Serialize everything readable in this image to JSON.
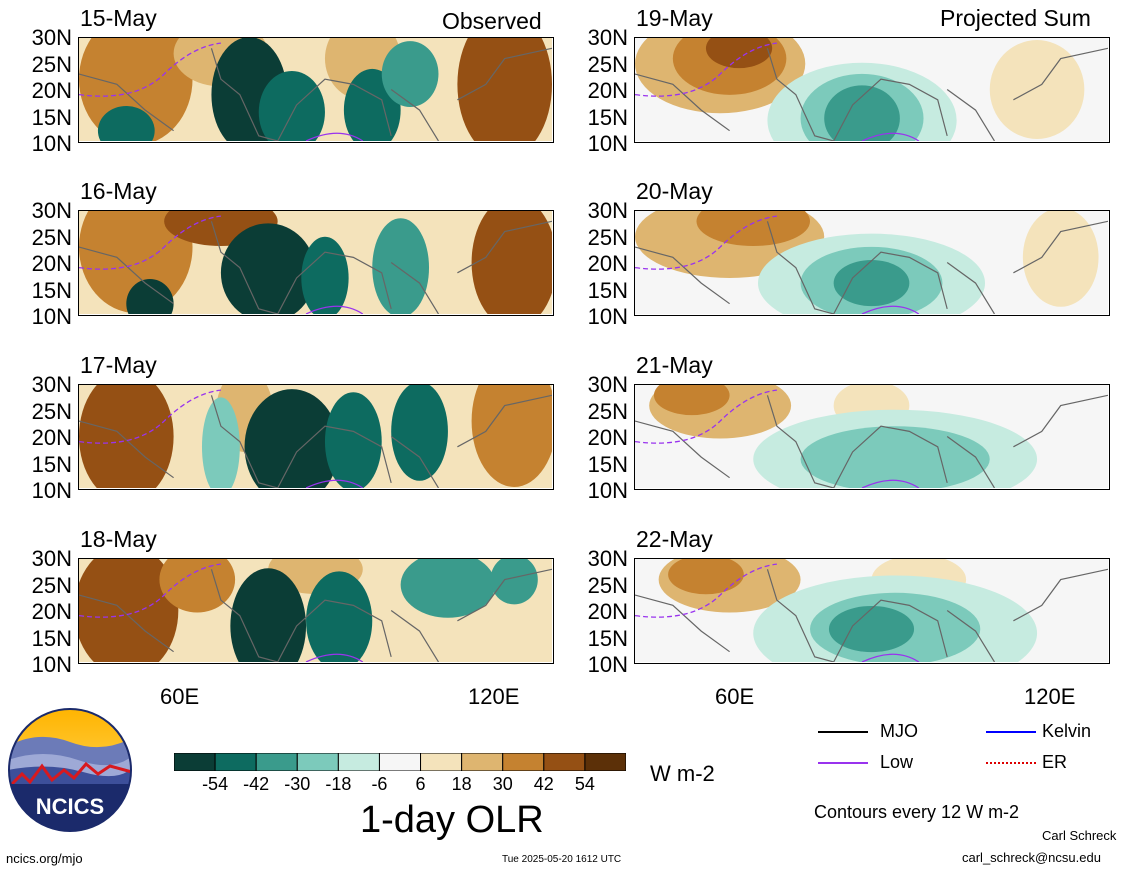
{
  "columns": {
    "left_title": "Observed",
    "right_title": "Projected Sum"
  },
  "panels_left": [
    "15-May",
    "16-May",
    "17-May",
    "18-May"
  ],
  "panels_right": [
    "19-May",
    "20-May",
    "21-May",
    "22-May"
  ],
  "lat_ticks": [
    "30N",
    "25N",
    "20N",
    "15N",
    "10N"
  ],
  "lon_ticks": [
    "60E",
    "120E"
  ],
  "colorbar": {
    "tick_labels": [
      "-54",
      "-42",
      "-30",
      "-18",
      "-6",
      "6",
      "18",
      "30",
      "42",
      "54"
    ],
    "colors": [
      "#0b3d36",
      "#0d6b60",
      "#3a9b8c",
      "#7ccabb",
      "#c6ebe0",
      "#f6f6f6",
      "#f4e3bb",
      "#deb570",
      "#c58230",
      "#955014",
      "#5c3008"
    ],
    "units": "W m-2",
    "title": "1-day OLR"
  },
  "legend": {
    "items": [
      {
        "label": "MJO",
        "color": "#000000"
      },
      {
        "label": "Kelvin",
        "color": "#0000ff"
      },
      {
        "label": "Low",
        "color": "#9933ee"
      },
      {
        "label": "ER",
        "color": "#dd0000"
      }
    ],
    "contour_note": "Contours every 12 W m-2"
  },
  "logo_text": "NCICS",
  "footer": {
    "left": "ncics.org/mjo",
    "center": "Tue 2025-05-20 1612 UTC",
    "author": "Carl Schreck",
    "email": "carl_schreck@ncsu.edu"
  }
}
